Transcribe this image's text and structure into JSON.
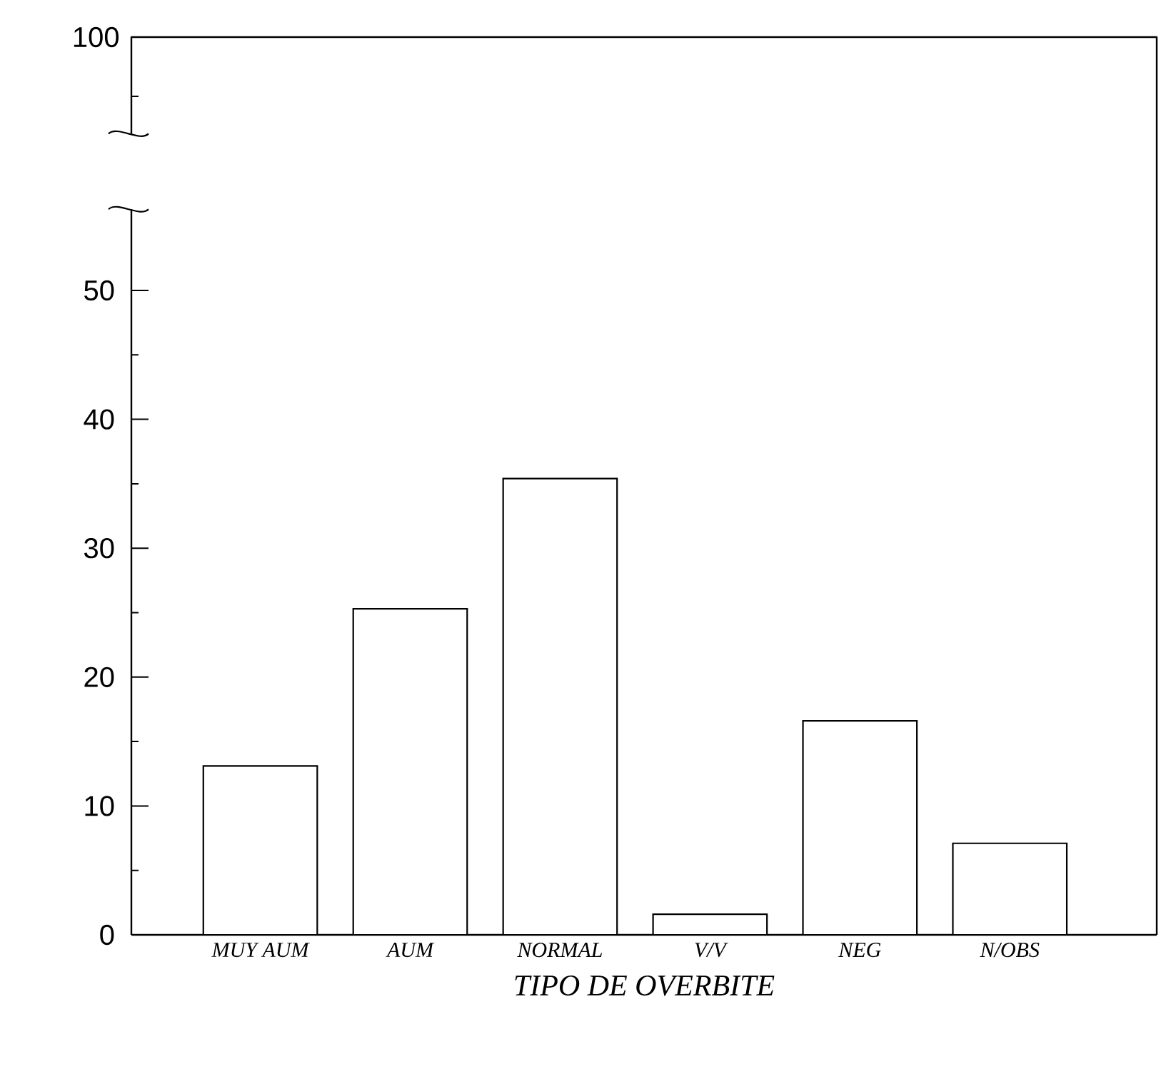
{
  "chart_data": {
    "type": "bar",
    "xlabel": "TIPO DE OVERBITE",
    "categories": [
      "MUY AUM",
      "AUM",
      "NORMAL",
      "V/V",
      "NEG",
      "N/OBS"
    ],
    "values": [
      13.1,
      25.3,
      35.4,
      1.6,
      16.6,
      7.1
    ],
    "ylim": [
      0,
      56.3
    ],
    "yticks": [
      0,
      {
        "value": 5,
        "label": null
      },
      10,
      {
        "value": 15,
        "label": null
      },
      20,
      {
        "value": 25,
        "label": null
      },
      30,
      {
        "value": 35,
        "label": null
      },
      40,
      {
        "value": 45,
        "label": null
      },
      50
    ],
    "annotations": [
      "100"
    ]
  }
}
